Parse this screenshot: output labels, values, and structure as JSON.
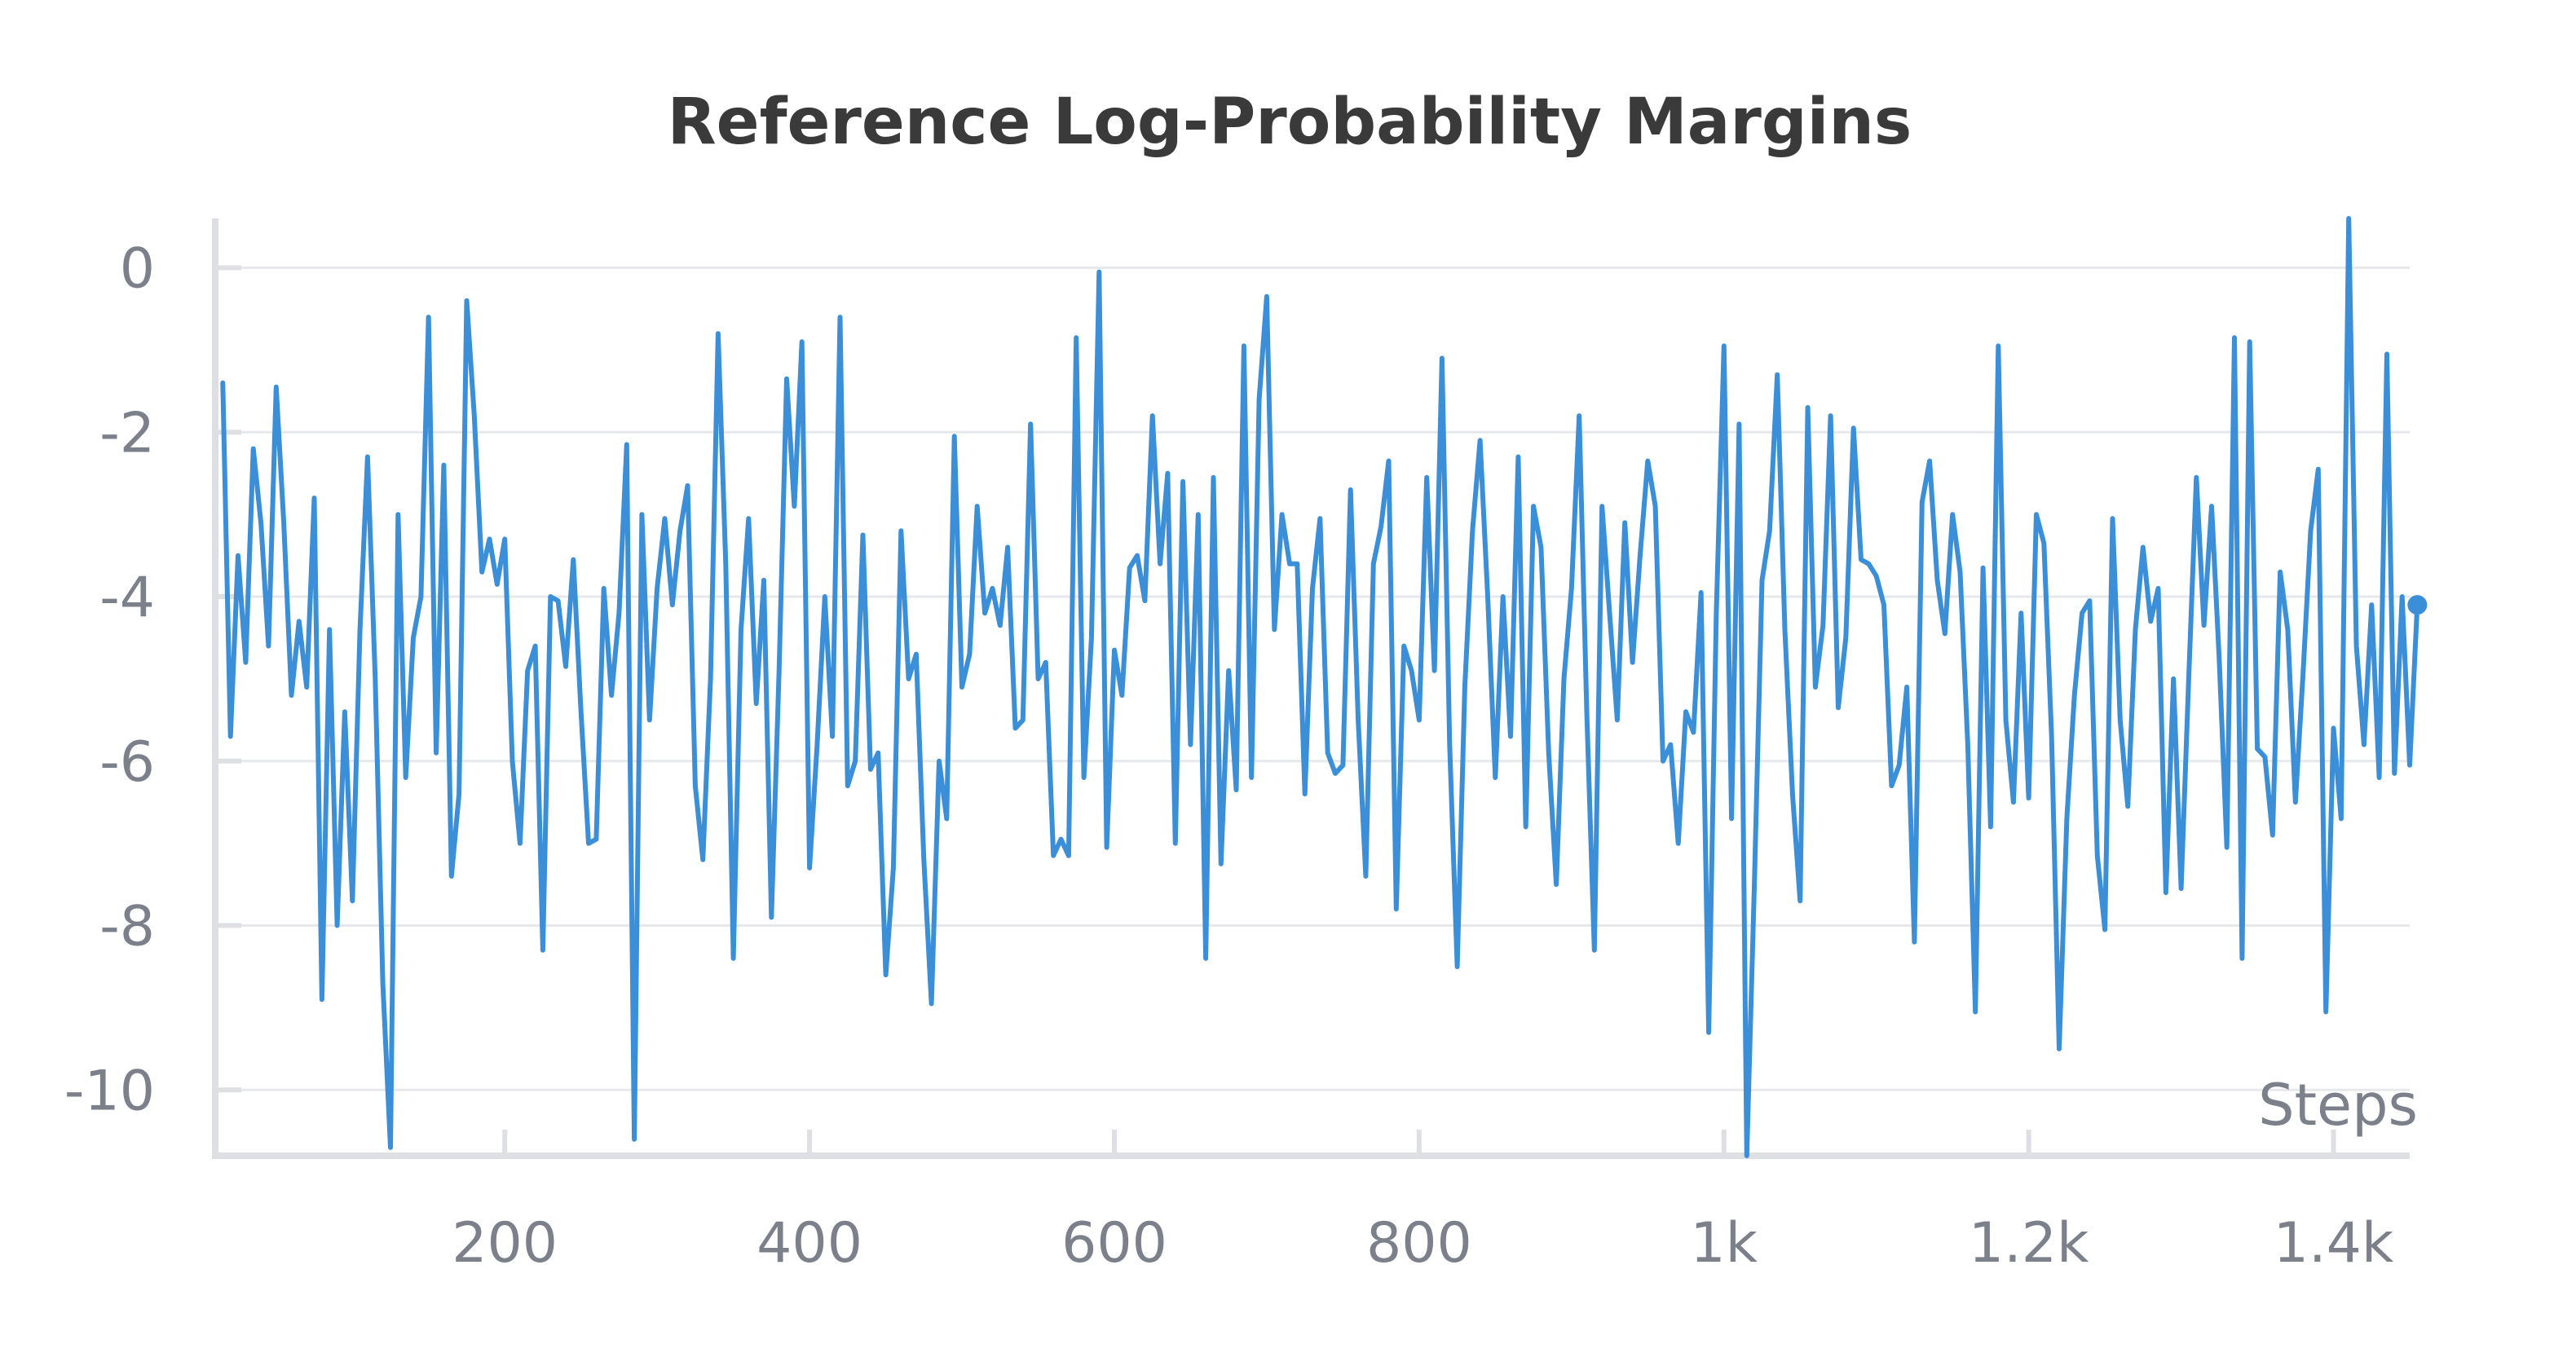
{
  "chart_data": {
    "type": "line",
    "title": "Reference Log-Probability Margins",
    "xlabel": "Steps",
    "ylabel": "",
    "xlim": [
      10,
      1450
    ],
    "ylim": [
      -10.8,
      0.6
    ],
    "grid": true,
    "x_ticks": [
      {
        "value": 200,
        "label": "200"
      },
      {
        "value": 400,
        "label": "400"
      },
      {
        "value": 600,
        "label": "600"
      },
      {
        "value": 800,
        "label": "800"
      },
      {
        "value": 1000,
        "label": "1k"
      },
      {
        "value": 1200,
        "label": "1.2k"
      },
      {
        "value": 1400,
        "label": "1.4k"
      }
    ],
    "y_ticks": [
      {
        "value": 0,
        "label": "0"
      },
      {
        "value": -2,
        "label": "-2"
      },
      {
        "value": -4,
        "label": "-4"
      },
      {
        "value": -6,
        "label": "-6"
      },
      {
        "value": -8,
        "label": "-8"
      },
      {
        "value": -10,
        "label": "-10"
      }
    ],
    "series": [
      {
        "color": "#3a8fd8",
        "end_marker": true,
        "points": [
          [
            15,
            -1.4
          ],
          [
            20,
            -5.7
          ],
          [
            25,
            -3.5
          ],
          [
            30,
            -4.8
          ],
          [
            35,
            -2.2
          ],
          [
            40,
            -3.1
          ],
          [
            45,
            -4.6
          ],
          [
            50,
            -1.45
          ],
          [
            55,
            -3.1
          ],
          [
            60,
            -5.2
          ],
          [
            65,
            -4.3
          ],
          [
            70,
            -5.1
          ],
          [
            75,
            -2.8
          ],
          [
            80,
            -8.9
          ],
          [
            85,
            -4.4
          ],
          [
            90,
            -8.0
          ],
          [
            95,
            -5.4
          ],
          [
            100,
            -7.7
          ],
          [
            105,
            -4.4
          ],
          [
            110,
            -2.3
          ],
          [
            115,
            -5.0
          ],
          [
            120,
            -8.7
          ],
          [
            125,
            -10.7
          ],
          [
            130,
            -3.0
          ],
          [
            135,
            -6.2
          ],
          [
            140,
            -4.5
          ],
          [
            145,
            -4.0
          ],
          [
            150,
            -0.6
          ],
          [
            155,
            -5.9
          ],
          [
            160,
            -2.4
          ],
          [
            165,
            -7.4
          ],
          [
            170,
            -6.4
          ],
          [
            175,
            -0.4
          ],
          [
            180,
            -1.8
          ],
          [
            185,
            -3.7
          ],
          [
            190,
            -3.3
          ],
          [
            195,
            -3.85
          ],
          [
            200,
            -3.3
          ],
          [
            205,
            -6.0
          ],
          [
            210,
            -7.0
          ],
          [
            215,
            -4.9
          ],
          [
            220,
            -4.6
          ],
          [
            225,
            -8.3
          ],
          [
            230,
            -4.0
          ],
          [
            235,
            -4.05
          ],
          [
            240,
            -4.85
          ],
          [
            245,
            -3.55
          ],
          [
            250,
            -5.4
          ],
          [
            255,
            -7.0
          ],
          [
            260,
            -6.95
          ],
          [
            265,
            -3.9
          ],
          [
            270,
            -5.2
          ],
          [
            275,
            -4.2
          ],
          [
            280,
            -2.15
          ],
          [
            285,
            -10.6
          ],
          [
            290,
            -3.0
          ],
          [
            295,
            -5.5
          ],
          [
            300,
            -3.9
          ],
          [
            305,
            -3.05
          ],
          [
            310,
            -4.1
          ],
          [
            315,
            -3.2
          ],
          [
            320,
            -2.65
          ],
          [
            325,
            -6.3
          ],
          [
            330,
            -7.2
          ],
          [
            335,
            -5.0
          ],
          [
            340,
            -0.8
          ],
          [
            345,
            -3.6
          ],
          [
            350,
            -8.4
          ],
          [
            355,
            -4.4
          ],
          [
            360,
            -3.05
          ],
          [
            365,
            -5.3
          ],
          [
            370,
            -3.8
          ],
          [
            375,
            -7.9
          ],
          [
            380,
            -4.9
          ],
          [
            385,
            -1.35
          ],
          [
            390,
            -2.9
          ],
          [
            395,
            -0.9
          ],
          [
            400,
            -7.3
          ],
          [
            405,
            -5.8
          ],
          [
            410,
            -4.0
          ],
          [
            415,
            -5.7
          ],
          [
            420,
            -0.6
          ],
          [
            425,
            -6.3
          ],
          [
            430,
            -6.0
          ],
          [
            435,
            -3.25
          ],
          [
            440,
            -6.1
          ],
          [
            445,
            -5.9
          ],
          [
            450,
            -8.6
          ],
          [
            455,
            -7.3
          ],
          [
            460,
            -3.2
          ],
          [
            465,
            -5.0
          ],
          [
            470,
            -4.7
          ],
          [
            475,
            -7.2
          ],
          [
            480,
            -8.95
          ],
          [
            485,
            -6.0
          ],
          [
            490,
            -6.7
          ],
          [
            495,
            -2.05
          ],
          [
            500,
            -5.1
          ],
          [
            505,
            -4.7
          ],
          [
            510,
            -2.9
          ],
          [
            515,
            -4.2
          ],
          [
            520,
            -3.9
          ],
          [
            525,
            -4.35
          ],
          [
            530,
            -3.4
          ],
          [
            535,
            -5.6
          ],
          [
            540,
            -5.5
          ],
          [
            545,
            -1.9
          ],
          [
            550,
            -5.0
          ],
          [
            555,
            -4.8
          ],
          [
            560,
            -7.15
          ],
          [
            565,
            -6.95
          ],
          [
            570,
            -7.15
          ],
          [
            575,
            -0.85
          ],
          [
            580,
            -6.2
          ],
          [
            585,
            -4.5
          ],
          [
            590,
            -0.05
          ],
          [
            595,
            -7.05
          ],
          [
            600,
            -4.65
          ],
          [
            605,
            -5.2
          ],
          [
            610,
            -3.65
          ],
          [
            615,
            -3.5
          ],
          [
            620,
            -4.05
          ],
          [
            625,
            -1.8
          ],
          [
            630,
            -3.6
          ],
          [
            635,
            -2.5
          ],
          [
            640,
            -7.0
          ],
          [
            645,
            -2.6
          ],
          [
            650,
            -5.8
          ],
          [
            655,
            -3.0
          ],
          [
            660,
            -8.4
          ],
          [
            665,
            -2.55
          ],
          [
            670,
            -7.25
          ],
          [
            675,
            -4.9
          ],
          [
            680,
            -6.35
          ],
          [
            685,
            -0.95
          ],
          [
            690,
            -6.2
          ],
          [
            695,
            -1.6
          ],
          [
            700,
            -0.35
          ],
          [
            705,
            -4.4
          ],
          [
            710,
            -3.0
          ],
          [
            715,
            -3.6
          ],
          [
            720,
            -3.6
          ],
          [
            725,
            -6.4
          ],
          [
            730,
            -3.9
          ],
          [
            735,
            -3.05
          ],
          [
            740,
            -5.9
          ],
          [
            745,
            -6.15
          ],
          [
            750,
            -6.05
          ],
          [
            755,
            -2.7
          ],
          [
            760,
            -5.5
          ],
          [
            765,
            -7.4
          ],
          [
            770,
            -3.6
          ],
          [
            775,
            -3.15
          ],
          [
            780,
            -2.35
          ],
          [
            785,
            -7.8
          ],
          [
            790,
            -4.6
          ],
          [
            795,
            -4.9
          ],
          [
            800,
            -5.5
          ],
          [
            805,
            -2.55
          ],
          [
            810,
            -4.9
          ],
          [
            815,
            -1.1
          ],
          [
            820,
            -5.8
          ],
          [
            825,
            -8.5
          ],
          [
            830,
            -5.1
          ],
          [
            835,
            -3.2
          ],
          [
            840,
            -2.1
          ],
          [
            845,
            -4.0
          ],
          [
            850,
            -6.2
          ],
          [
            855,
            -4.0
          ],
          [
            860,
            -5.7
          ],
          [
            865,
            -2.3
          ],
          [
            870,
            -6.8
          ],
          [
            875,
            -2.9
          ],
          [
            880,
            -3.4
          ],
          [
            885,
            -5.9
          ],
          [
            890,
            -7.5
          ],
          [
            895,
            -5.0
          ],
          [
            900,
            -3.9
          ],
          [
            905,
            -1.8
          ],
          [
            910,
            -5.4
          ],
          [
            915,
            -8.3
          ],
          [
            920,
            -2.9
          ],
          [
            925,
            -4.2
          ],
          [
            930,
            -5.5
          ],
          [
            935,
            -3.1
          ],
          [
            940,
            -4.8
          ],
          [
            945,
            -3.5
          ],
          [
            950,
            -2.35
          ],
          [
            955,
            -2.9
          ],
          [
            960,
            -6.0
          ],
          [
            965,
            -5.8
          ],
          [
            970,
            -7.0
          ],
          [
            975,
            -5.4
          ],
          [
            980,
            -5.65
          ],
          [
            985,
            -3.95
          ],
          [
            990,
            -9.3
          ],
          [
            995,
            -4.2
          ],
          [
            1000,
            -0.95
          ],
          [
            1005,
            -6.7
          ],
          [
            1010,
            -1.9
          ],
          [
            1015,
            -10.8
          ],
          [
            1020,
            -7.5
          ],
          [
            1025,
            -3.8
          ],
          [
            1030,
            -3.2
          ],
          [
            1035,
            -1.3
          ],
          [
            1040,
            -4.4
          ],
          [
            1045,
            -6.4
          ],
          [
            1050,
            -7.7
          ],
          [
            1055,
            -1.7
          ],
          [
            1060,
            -5.1
          ],
          [
            1065,
            -4.35
          ],
          [
            1070,
            -1.8
          ],
          [
            1075,
            -5.35
          ],
          [
            1080,
            -4.5
          ],
          [
            1085,
            -1.95
          ],
          [
            1090,
            -3.55
          ],
          [
            1095,
            -3.6
          ],
          [
            1100,
            -3.75
          ],
          [
            1105,
            -4.1
          ],
          [
            1110,
            -6.3
          ],
          [
            1115,
            -6.05
          ],
          [
            1120,
            -5.1
          ],
          [
            1125,
            -8.2
          ],
          [
            1130,
            -2.85
          ],
          [
            1135,
            -2.35
          ],
          [
            1140,
            -3.8
          ],
          [
            1145,
            -4.45
          ],
          [
            1150,
            -3.0
          ],
          [
            1155,
            -3.7
          ],
          [
            1160,
            -5.8
          ],
          [
            1165,
            -9.05
          ],
          [
            1170,
            -3.65
          ],
          [
            1175,
            -6.8
          ],
          [
            1180,
            -0.95
          ],
          [
            1185,
            -5.5
          ],
          [
            1190,
            -6.5
          ],
          [
            1195,
            -4.2
          ],
          [
            1200,
            -6.45
          ],
          [
            1205,
            -3.0
          ],
          [
            1210,
            -3.35
          ],
          [
            1215,
            -5.7
          ],
          [
            1220,
            -9.5
          ],
          [
            1225,
            -6.7
          ],
          [
            1230,
            -5.2
          ],
          [
            1235,
            -4.2
          ],
          [
            1240,
            -4.05
          ],
          [
            1245,
            -7.15
          ],
          [
            1250,
            -8.05
          ],
          [
            1255,
            -3.05
          ],
          [
            1260,
            -5.5
          ],
          [
            1265,
            -6.55
          ],
          [
            1270,
            -4.4
          ],
          [
            1275,
            -3.4
          ],
          [
            1280,
            -4.3
          ],
          [
            1285,
            -3.9
          ],
          [
            1290,
            -7.6
          ],
          [
            1295,
            -5.0
          ],
          [
            1300,
            -7.55
          ],
          [
            1305,
            -5.0
          ],
          [
            1310,
            -2.55
          ],
          [
            1315,
            -4.35
          ],
          [
            1320,
            -2.9
          ],
          [
            1325,
            -4.75
          ],
          [
            1330,
            -7.05
          ],
          [
            1335,
            -0.85
          ],
          [
            1340,
            -8.4
          ],
          [
            1345,
            -0.9
          ],
          [
            1350,
            -5.85
          ],
          [
            1355,
            -5.95
          ],
          [
            1360,
            -6.9
          ],
          [
            1365,
            -3.7
          ],
          [
            1370,
            -4.4
          ],
          [
            1375,
            -6.5
          ],
          [
            1380,
            -4.95
          ],
          [
            1385,
            -3.2
          ],
          [
            1390,
            -2.45
          ],
          [
            1395,
            -9.05
          ],
          [
            1400,
            -5.6
          ],
          [
            1405,
            -6.7
          ],
          [
            1410,
            0.6
          ],
          [
            1415,
            -4.6
          ],
          [
            1420,
            -5.8
          ],
          [
            1425,
            -4.1
          ],
          [
            1430,
            -6.2
          ],
          [
            1435,
            -1.05
          ],
          [
            1440,
            -6.15
          ],
          [
            1445,
            -4.0
          ],
          [
            1450,
            -6.05
          ],
          [
            1455,
            -4.1
          ]
        ]
      }
    ]
  }
}
